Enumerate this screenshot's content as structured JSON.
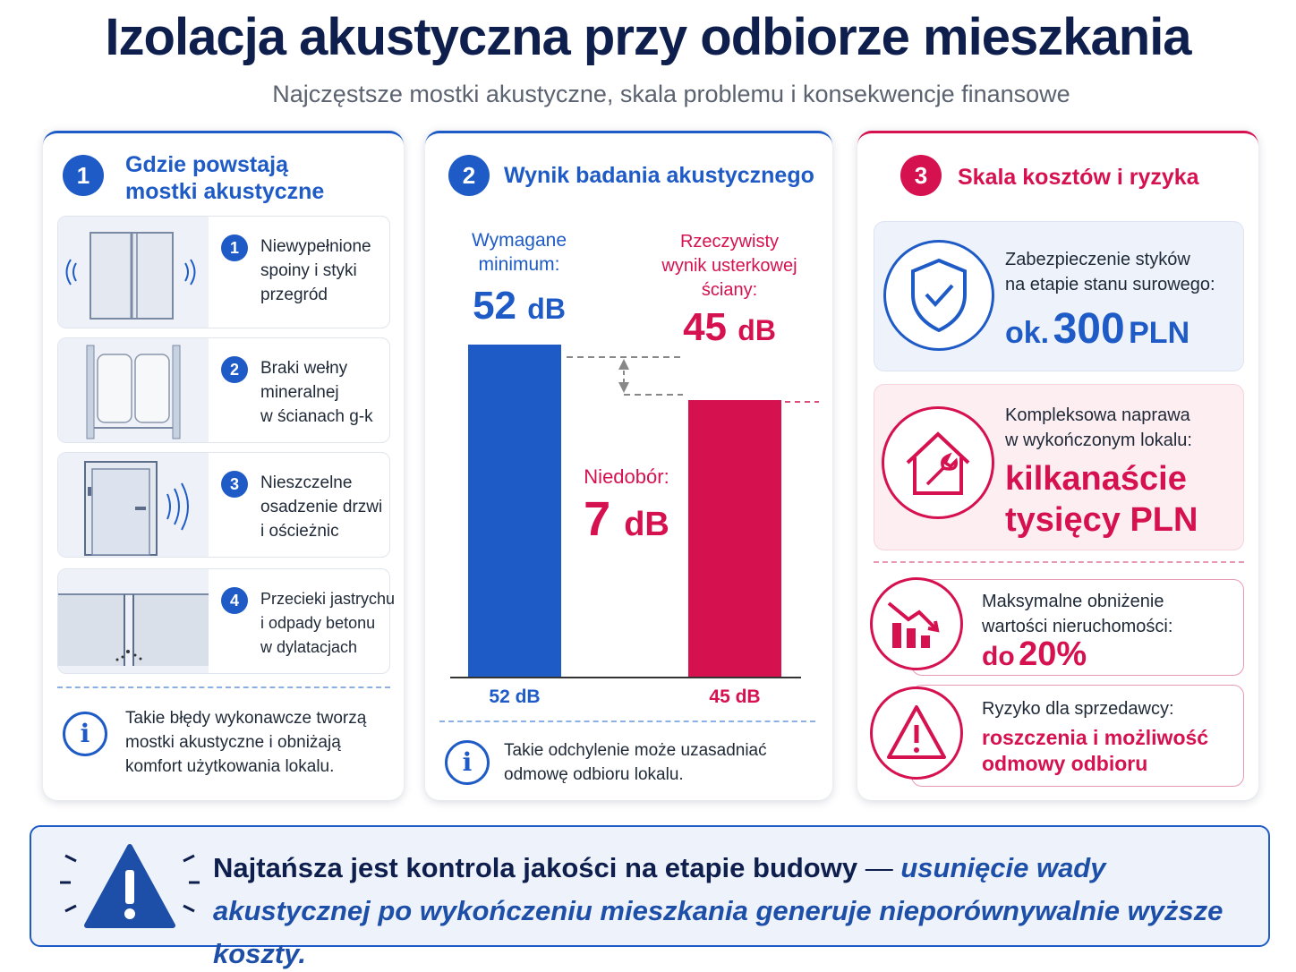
{
  "header": {
    "title": "Izolacja akustyczna przy odbiorze mieszkania",
    "subtitle": "Najczęstsze mostki akustyczne, skala problemu i konsekwencje finansowe"
  },
  "card1": {
    "number": "1",
    "title_line1": "Gdzie powstają",
    "title_line2": "mostki akustyczne",
    "items": [
      {
        "number": "1",
        "lines": [
          "Niewypełnione",
          "spoiny i styki",
          "przegród"
        ]
      },
      {
        "number": "2",
        "lines": [
          "Braki wełny",
          "mineralnej",
          "w ścianach g-k"
        ]
      },
      {
        "number": "3",
        "lines": [
          "Nieszczelne",
          "osadzenie drzwi",
          "i ościeżnic"
        ]
      },
      {
        "number": "4",
        "lines": [
          "Przecieki jastrychu",
          "i odpady betonu",
          "w dylatacjach"
        ]
      }
    ],
    "info": [
      "Takie błędy wykonawcze tworzą",
      "mostki akustyczne i obniżają",
      "komfort użytkowania lokalu."
    ]
  },
  "card2": {
    "number": "2",
    "title": "Wynik badania akustycznego",
    "required_label": [
      "Wymagane",
      "minimum:"
    ],
    "required_value": "52",
    "actual_label": [
      "Rzeczywisty",
      "wynik usterkowej",
      "ściany:"
    ],
    "actual_value": "45",
    "unit": "dB",
    "deficit_label": "Niedobór:",
    "deficit_value": "7",
    "axis_labels": [
      "52 dB",
      "45 dB"
    ],
    "info": [
      "Takie odchylenie może uzasadniać",
      "odmowę odbioru lokalu."
    ]
  },
  "chart_data": {
    "type": "bar",
    "categories": [
      "Wymagane minimum",
      "Rzeczywisty wynik usterkowej ściany"
    ],
    "values": [
      52,
      45
    ],
    "unit": "dB",
    "colors": [
      "#1e5bc6",
      "#d6114f"
    ],
    "deficit": 7
  },
  "card3": {
    "number": "3",
    "title": "Skala kosztów i ryzyka",
    "box1": {
      "lines": [
        "Zabezpieczenie styków",
        "na etapie stanu surowego:"
      ],
      "value_prefix": "ok.",
      "value": "300",
      "value_suffix": "PLN",
      "icon": "shield-check-icon"
    },
    "box2": {
      "lines": [
        "Kompleksowa naprawa",
        "w wykończonym lokalu:"
      ],
      "value_lines": [
        "kilkanaście",
        "tysięcy PLN"
      ],
      "icon": "house-wrench-icon"
    },
    "box3": {
      "lines": [
        "Maksymalne obniżenie",
        "wartości nieruchomości:"
      ],
      "value_prefix": "do",
      "value": "20%",
      "icon": "chart-down-icon"
    },
    "box4": {
      "lines": [
        "Ryzyko dla sprzedawcy:"
      ],
      "value_lines": [
        "roszczenia i możliwość",
        "odmowy odbioru"
      ],
      "icon": "warning-icon"
    }
  },
  "banner": {
    "bold": "Najtańsza jest kontrola jakości na etapie budowy",
    "dash": " — ",
    "italic_1": "usunięcie wady",
    "italic_2": "akustycznej po wykończeniu mieszkania generuje nieporównywalnie wyższe koszty."
  },
  "colors": {
    "blue": "#1e5bc6",
    "red": "#d6114f",
    "navy": "#0f1f4d"
  }
}
